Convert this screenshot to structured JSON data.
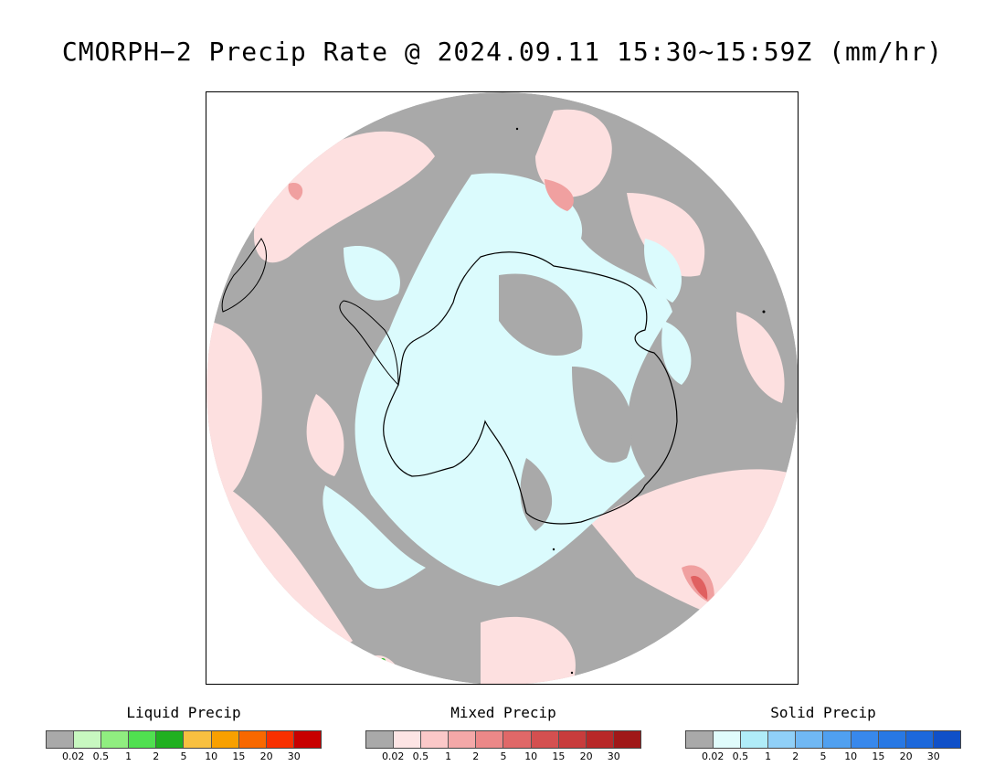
{
  "title": "CMORPH−2 Precip Rate @ 2024.09.11 15:30~15:59Z (mm/hr)",
  "map": {
    "projection": "south-polar-stereographic",
    "colors": {
      "background_gray": "#a9a9a9",
      "snow_light": "#dbfbfd",
      "mixed_light": "#fde0e0",
      "mixed_medium": "#f0a0a0",
      "mixed_strong": "#e06060",
      "liquid_green": "#30c030",
      "coastline": "#000000"
    }
  },
  "legends": [
    {
      "title": "Liquid Precip",
      "colors": [
        "#a9a9a9",
        "#c8f8c0",
        "#90ee80",
        "#50e050",
        "#20b020",
        "#f8c040",
        "#f8a000",
        "#f86800",
        "#f83000",
        "#c80000"
      ],
      "ticks": [
        "0.02",
        "0.5",
        "1",
        "2",
        "5",
        "10",
        "15",
        "20",
        "30"
      ]
    },
    {
      "title": "Mixed Precip",
      "colors": [
        "#a9a9a9",
        "#fde4e4",
        "#fbc8c8",
        "#f4a8a8",
        "#ec8888",
        "#e06868",
        "#d45050",
        "#c83c3c",
        "#b82828",
        "#a01818"
      ],
      "ticks": [
        "0.02",
        "0.5",
        "1",
        "2",
        "5",
        "10",
        "15",
        "20",
        "30"
      ]
    },
    {
      "title": "Solid Precip",
      "colors": [
        "#a9a9a9",
        "#e0fcfc",
        "#b0ecf8",
        "#90d0f8",
        "#70b8f4",
        "#50a0f0",
        "#3888ec",
        "#2878e4",
        "#1c68dc",
        "#1050c8"
      ],
      "ticks": [
        "0.02",
        "0.5",
        "1",
        "2",
        "5",
        "10",
        "15",
        "20",
        "30"
      ]
    }
  ]
}
